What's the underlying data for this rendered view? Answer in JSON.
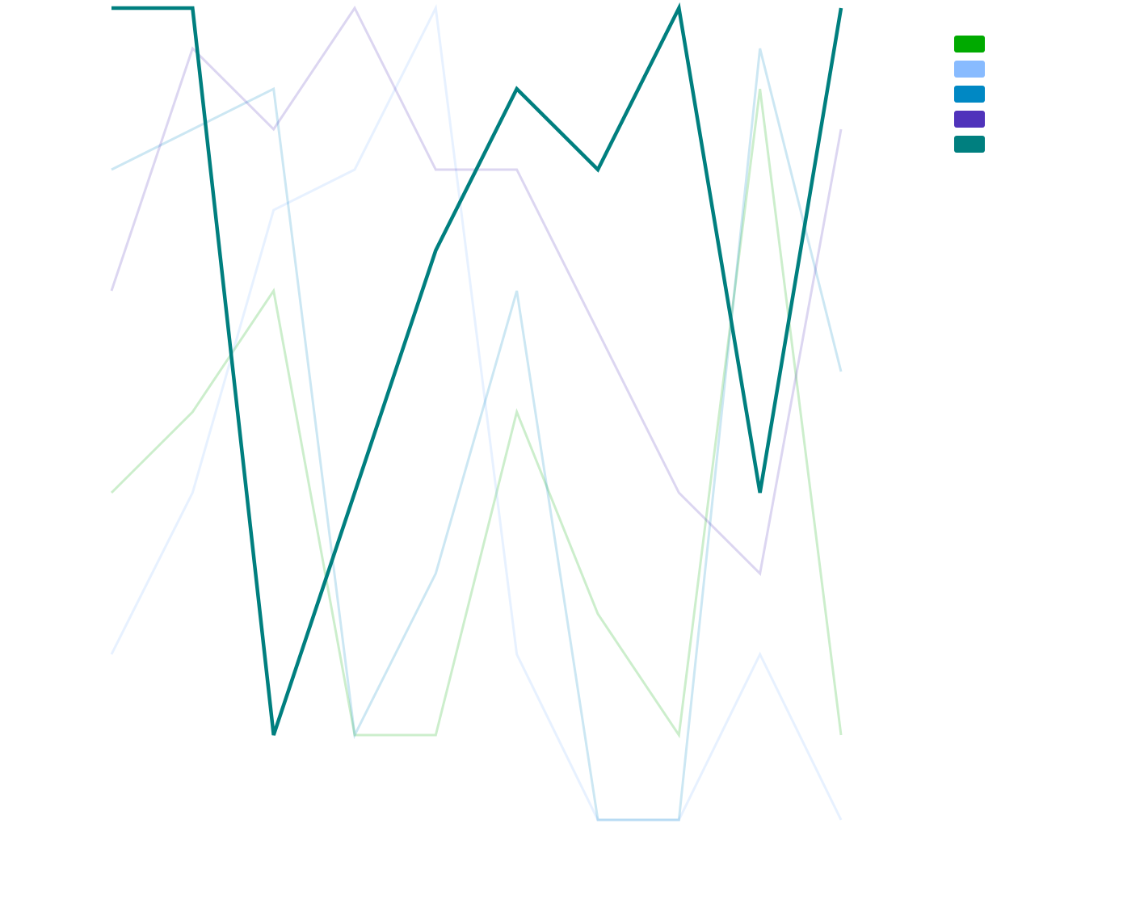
{
  "chart_data": {
    "type": "line",
    "categories": [
      null,
      null,
      null,
      null,
      null,
      null,
      null,
      null,
      null,
      null
    ],
    "ylim": [
      -1,
      20
    ],
    "legend": "top-right",
    "series": [
      {
        "color": "#00aa00",
        "opacity": 0.2,
        "values": [
          8,
          10,
          13,
          2,
          2,
          10,
          5,
          2,
          18,
          2
        ]
      },
      {
        "color": "#88bbff",
        "opacity": 0.2,
        "values": [
          4,
          8,
          15,
          16,
          20,
          4,
          -0.1,
          -0.1,
          4,
          -0.1
        ]
      },
      {
        "color": "#0088c4",
        "opacity": 0.2,
        "values": [
          16,
          17,
          18,
          2,
          6,
          13,
          -0.1,
          -0.1,
          19,
          11
        ]
      },
      {
        "color": "#5033bb",
        "opacity": 0.2,
        "values": [
          13,
          19,
          17,
          20,
          16,
          16,
          12,
          8,
          6,
          17
        ]
      },
      {
        "color": "#007f7f",
        "opacity": 1,
        "values": [
          20,
          20,
          2,
          8,
          14,
          18,
          16,
          20,
          8,
          20
        ]
      }
    ]
  }
}
